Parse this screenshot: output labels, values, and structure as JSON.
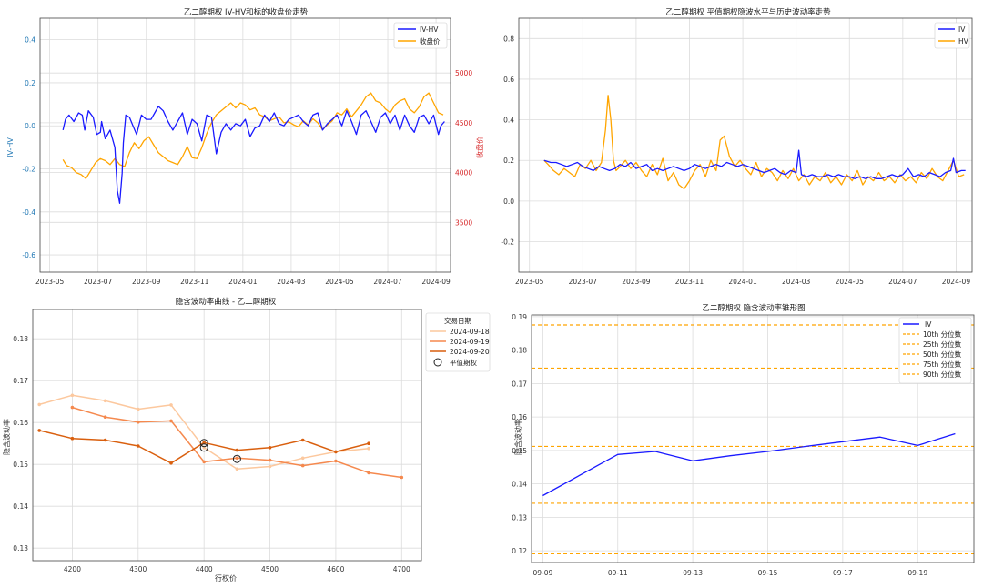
{
  "chart_data": [
    {
      "type": "line",
      "title": "乙二醇期权 IV-HV和标的收盘价走势",
      "ylabel": "IV-HV",
      "ylabel_right": "收盘价",
      "ylim": [
        -0.68,
        0.5
      ],
      "ylim_right": [
        3000,
        5550
      ],
      "y_ticks": [
        -0.6,
        -0.4,
        -0.2,
        0.0,
        0.2,
        0.4
      ],
      "y_ticks_right": [
        3500,
        4000,
        4500,
        5000
      ],
      "x_ticks": [
        "2023-05",
        "2023-07",
        "2023-09",
        "2023-11",
        "2024-01",
        "2024-03",
        "2024-05",
        "2024-07",
        "2024-09"
      ],
      "x_range_months": [
        -0.4,
        16.6
      ],
      "legend": [
        "IV-HV",
        "收盘价"
      ],
      "colors": {
        "iv_hv": "#1a1aff",
        "close": "#ffa500",
        "right_axis": "#d62728",
        "left_axis": "#1f77b4"
      },
      "series": [
        {
          "name": "IV-HV",
          "x": [
            0.55,
            0.65,
            0.8,
            1.0,
            1.2,
            1.35,
            1.45,
            1.6,
            1.8,
            1.95,
            2.1,
            2.15,
            2.3,
            2.5,
            2.7,
            2.8,
            2.9,
            3.0,
            3.05,
            3.15,
            3.3,
            3.45,
            3.6,
            3.8,
            4.0,
            4.2,
            4.35,
            4.5,
            4.7,
            4.9,
            5.1,
            5.3,
            5.5,
            5.7,
            5.9,
            6.1,
            6.3,
            6.5,
            6.7,
            6.9,
            7.1,
            7.3,
            7.5,
            7.7,
            7.9,
            8.1,
            8.3,
            8.5,
            8.7,
            8.9,
            9.1,
            9.3,
            9.5,
            9.7,
            9.9,
            10.1,
            10.3,
            10.5,
            10.7,
            10.9,
            11.1,
            11.3,
            11.5,
            11.7,
            11.9,
            12.1,
            12.3,
            12.5,
            12.7,
            12.9,
            13.1,
            13.3,
            13.5,
            13.7,
            13.9,
            14.1,
            14.3,
            14.5,
            14.7,
            14.9,
            15.1,
            15.3,
            15.5,
            15.7,
            15.9,
            16.1,
            16.2,
            16.35
          ],
          "values": [
            -0.02,
            0.03,
            0.05,
            0.02,
            0.06,
            0.05,
            -0.02,
            0.07,
            0.04,
            -0.04,
            -0.03,
            0.02,
            -0.06,
            -0.02,
            -0.1,
            -0.3,
            -0.36,
            -0.22,
            -0.08,
            0.05,
            0.04,
            0.0,
            -0.04,
            0.05,
            0.03,
            0.03,
            0.06,
            0.09,
            0.07,
            0.02,
            -0.02,
            0.02,
            0.06,
            -0.04,
            0.03,
            0.01,
            -0.07,
            0.05,
            0.04,
            -0.13,
            -0.03,
            0.01,
            -0.02,
            0.01,
            0.0,
            0.03,
            -0.05,
            -0.01,
            0.0,
            0.05,
            0.02,
            0.06,
            0.01,
            0.0,
            0.03,
            0.04,
            0.05,
            0.02,
            0.0,
            0.05,
            0.06,
            -0.02,
            0.01,
            0.03,
            0.05,
            0.0,
            0.07,
            0.02,
            -0.04,
            0.05,
            0.07,
            0.02,
            -0.03,
            0.04,
            0.06,
            0.01,
            0.05,
            -0.02,
            0.05,
            0.0,
            -0.03,
            0.04,
            0.05,
            0.01,
            0.05,
            -0.04,
            0.0,
            0.02
          ]
        },
        {
          "name": "收盘价",
          "x": [
            0.55,
            0.7,
            0.9,
            1.1,
            1.3,
            1.5,
            1.7,
            1.9,
            2.1,
            2.3,
            2.5,
            2.7,
            2.9,
            3.1,
            3.3,
            3.5,
            3.7,
            3.9,
            4.1,
            4.3,
            4.5,
            4.7,
            4.9,
            5.1,
            5.3,
            5.5,
            5.7,
            5.9,
            6.1,
            6.3,
            6.5,
            6.7,
            6.9,
            7.1,
            7.3,
            7.5,
            7.7,
            7.9,
            8.1,
            8.3,
            8.5,
            8.7,
            8.9,
            9.1,
            9.3,
            9.5,
            9.7,
            9.9,
            10.1,
            10.3,
            10.5,
            10.7,
            10.9,
            11.1,
            11.3,
            11.5,
            11.7,
            11.9,
            12.1,
            12.3,
            12.5,
            12.7,
            12.9,
            13.1,
            13.3,
            13.5,
            13.7,
            13.9,
            14.1,
            14.3,
            14.5,
            14.7,
            14.9,
            15.1,
            15.3,
            15.5,
            15.7,
            15.9,
            16.1,
            16.3
          ],
          "values": [
            4130,
            4070,
            4050,
            4000,
            3980,
            3940,
            4020,
            4100,
            4140,
            4120,
            4080,
            4140,
            4080,
            4060,
            4200,
            4300,
            4240,
            4320,
            4360,
            4280,
            4200,
            4160,
            4120,
            4100,
            4080,
            4160,
            4260,
            4150,
            4140,
            4250,
            4390,
            4500,
            4580,
            4620,
            4660,
            4700,
            4650,
            4700,
            4680,
            4630,
            4650,
            4580,
            4560,
            4520,
            4540,
            4560,
            4500,
            4510,
            4480,
            4460,
            4520,
            4480,
            4540,
            4500,
            4430,
            4480,
            4520,
            4600,
            4580,
            4640,
            4560,
            4620,
            4680,
            4760,
            4800,
            4720,
            4700,
            4640,
            4600,
            4680,
            4720,
            4740,
            4640,
            4600,
            4660,
            4760,
            4800,
            4700,
            4600,
            4580
          ]
        }
      ]
    },
    {
      "type": "line",
      "title": "乙二醇期权 平值期权隐波水平与历史波动率走势",
      "ylim": [
        -0.35,
        0.9
      ],
      "y_ticks": [
        -0.2,
        0.0,
        0.2,
        0.4,
        0.6,
        0.8
      ],
      "x_ticks": [
        "2023-05",
        "2023-07",
        "2023-09",
        "2023-11",
        "2024-01",
        "2024-03",
        "2024-05",
        "2024-07",
        "2024-09"
      ],
      "x_range_months": [
        -0.4,
        16.6
      ],
      "legend": [
        "IV",
        "HV"
      ],
      "colors": {
        "iv": "#1a1aff",
        "hv": "#ffa500"
      },
      "series": [
        {
          "name": "IV",
          "x": [
            0.55,
            0.8,
            1.0,
            1.2,
            1.4,
            1.6,
            1.8,
            2.0,
            2.2,
            2.4,
            2.6,
            2.8,
            3.0,
            3.2,
            3.4,
            3.6,
            3.8,
            4.0,
            4.2,
            4.4,
            4.6,
            4.8,
            5.0,
            5.2,
            5.4,
            5.6,
            5.8,
            6.0,
            6.2,
            6.4,
            6.6,
            6.8,
            7.0,
            7.2,
            7.4,
            7.6,
            7.8,
            8.0,
            8.2,
            8.4,
            8.6,
            8.8,
            9.0,
            9.2,
            9.4,
            9.6,
            9.8,
            10.0,
            10.1,
            10.2,
            10.4,
            10.6,
            10.8,
            11.0,
            11.2,
            11.4,
            11.6,
            11.8,
            12.0,
            12.2,
            12.4,
            12.6,
            12.8,
            13.0,
            13.2,
            13.4,
            13.6,
            13.8,
            14.0,
            14.2,
            14.4,
            14.6,
            14.8,
            15.0,
            15.2,
            15.4,
            15.6,
            15.8,
            15.9,
            16.0,
            16.2,
            16.35
          ],
          "values": [
            0.2,
            0.19,
            0.19,
            0.18,
            0.17,
            0.18,
            0.19,
            0.17,
            0.16,
            0.15,
            0.17,
            0.16,
            0.15,
            0.16,
            0.18,
            0.17,
            0.19,
            0.16,
            0.17,
            0.18,
            0.15,
            0.16,
            0.15,
            0.16,
            0.17,
            0.16,
            0.15,
            0.16,
            0.18,
            0.17,
            0.16,
            0.17,
            0.18,
            0.17,
            0.19,
            0.18,
            0.17,
            0.18,
            0.17,
            0.16,
            0.15,
            0.14,
            0.15,
            0.16,
            0.14,
            0.13,
            0.15,
            0.14,
            0.25,
            0.13,
            0.12,
            0.13,
            0.12,
            0.12,
            0.13,
            0.12,
            0.13,
            0.12,
            0.12,
            0.11,
            0.12,
            0.11,
            0.12,
            0.11,
            0.11,
            0.12,
            0.13,
            0.12,
            0.13,
            0.16,
            0.12,
            0.13,
            0.12,
            0.14,
            0.13,
            0.12,
            0.14,
            0.15,
            0.21,
            0.14,
            0.15,
            0.15
          ]
        },
        {
          "name": "HV",
          "x": [
            0.55,
            0.7,
            0.9,
            1.1,
            1.3,
            1.5,
            1.7,
            1.9,
            2.1,
            2.3,
            2.5,
            2.7,
            2.85,
            2.95,
            3.05,
            3.15,
            3.25,
            3.4,
            3.6,
            3.8,
            4.0,
            4.2,
            4.4,
            4.6,
            4.8,
            5.0,
            5.2,
            5.4,
            5.6,
            5.8,
            6.0,
            6.2,
            6.4,
            6.6,
            6.8,
            7.0,
            7.15,
            7.3,
            7.5,
            7.7,
            7.9,
            8.1,
            8.3,
            8.5,
            8.7,
            8.9,
            9.1,
            9.3,
            9.5,
            9.7,
            9.9,
            10.1,
            10.3,
            10.5,
            10.7,
            10.9,
            11.1,
            11.3,
            11.5,
            11.7,
            11.9,
            12.1,
            12.3,
            12.5,
            12.7,
            12.9,
            13.1,
            13.3,
            13.5,
            13.7,
            13.9,
            14.1,
            14.3,
            14.5,
            14.7,
            14.9,
            15.1,
            15.3,
            15.5,
            15.7,
            15.9,
            16.1,
            16.3
          ],
          "values": [
            0.2,
            0.18,
            0.15,
            0.13,
            0.16,
            0.14,
            0.12,
            0.18,
            0.16,
            0.2,
            0.15,
            0.19,
            0.35,
            0.52,
            0.4,
            0.2,
            0.15,
            0.17,
            0.2,
            0.16,
            0.19,
            0.15,
            0.12,
            0.18,
            0.13,
            0.21,
            0.1,
            0.14,
            0.08,
            0.06,
            0.1,
            0.15,
            0.18,
            0.12,
            0.2,
            0.15,
            0.3,
            0.32,
            0.22,
            0.17,
            0.2,
            0.16,
            0.13,
            0.19,
            0.12,
            0.16,
            0.14,
            0.1,
            0.15,
            0.11,
            0.16,
            0.1,
            0.13,
            0.08,
            0.12,
            0.1,
            0.14,
            0.09,
            0.12,
            0.08,
            0.13,
            0.1,
            0.15,
            0.08,
            0.12,
            0.1,
            0.14,
            0.1,
            0.12,
            0.09,
            0.13,
            0.1,
            0.12,
            0.09,
            0.14,
            0.11,
            0.16,
            0.12,
            0.1,
            0.15,
            0.2,
            0.12,
            0.13
          ]
        }
      ]
    },
    {
      "type": "line",
      "title": "隐含波动率曲线 - 乙二醇期权",
      "xlabel": "行权价",
      "ylabel": "隐含波动率",
      "xlim": [
        4140,
        4730
      ],
      "ylim": [
        0.127,
        0.187
      ],
      "x_ticks": [
        4200,
        4300,
        4400,
        4500,
        4600,
        4700
      ],
      "y_ticks": [
        0.13,
        0.14,
        0.15,
        0.16,
        0.17,
        0.18
      ],
      "legend_title": "交易日期",
      "legend_marker_label": "平值期权",
      "series": [
        {
          "name": "2024-09-18",
          "color": "#fcc89e",
          "x": [
            4150,
            4200,
            4250,
            4300,
            4350,
            4400,
            4450,
            4500,
            4550,
            4600,
            4650
          ],
          "values": [
            0.1643,
            0.1665,
            0.1652,
            0.1632,
            0.1642,
            0.154,
            0.1489,
            0.1495,
            0.1515,
            0.153,
            0.1538
          ]
        },
        {
          "name": "2024-09-19",
          "color": "#f5894e",
          "x": [
            4200,
            4250,
            4300,
            4350,
            4400,
            4450,
            4500,
            4550,
            4600,
            4650,
            4700
          ],
          "values": [
            0.1636,
            0.1613,
            0.1601,
            0.1604,
            0.1506,
            0.1515,
            0.151,
            0.1497,
            0.1508,
            0.148,
            0.1469
          ]
        },
        {
          "name": "2024-09-20",
          "color": "#d95f0e",
          "x": [
            4150,
            4200,
            4250,
            4300,
            4350,
            4400,
            4450,
            4500,
            4550,
            4600,
            4650
          ],
          "values": [
            0.1581,
            0.1562,
            0.1558,
            0.1544,
            0.1503,
            0.1552,
            0.1534,
            0.154,
            0.1558,
            0.153,
            0.155
          ]
        }
      ],
      "atm_points": [
        {
          "x": 4400,
          "y": 0.1551
        },
        {
          "x": 4400,
          "y": 0.154
        },
        {
          "x": 4450,
          "y": 0.1513
        }
      ]
    },
    {
      "type": "line",
      "title": "乙二醇期权 隐含波动率锥形图",
      "ylabel": "隐含波动率",
      "ylim": [
        0.1165,
        0.1905
      ],
      "y_ticks": [
        0.12,
        0.13,
        0.14,
        0.15,
        0.16,
        0.17,
        0.18,
        0.19
      ],
      "x_ticks": [
        "09-09",
        "09-11",
        "09-13",
        "09-15",
        "09-17",
        "09-19"
      ],
      "x_range_days": [
        8.7,
        20.5
      ],
      "series": [
        {
          "name": "IV",
          "color": "#1a1aff",
          "x": [
            9,
            11,
            12,
            13,
            14,
            15,
            16,
            17,
            18,
            19,
            20
          ],
          "values": [
            0.1365,
            0.1488,
            0.1497,
            0.1469,
            0.1484,
            0.1497,
            0.1512,
            0.1526,
            0.154,
            0.1515,
            0.155
          ]
        }
      ],
      "percentiles": [
        {
          "name": "10th 分位数",
          "value": 0.1191
        },
        {
          "name": "25th 分位数",
          "value": 0.1342
        },
        {
          "name": "50th 分位数",
          "value": 0.1512
        },
        {
          "name": "75th 分位数",
          "value": 0.1746
        },
        {
          "name": "90th 分位数",
          "value": 0.1875
        }
      ],
      "percentile_color": "#ffa500"
    }
  ]
}
